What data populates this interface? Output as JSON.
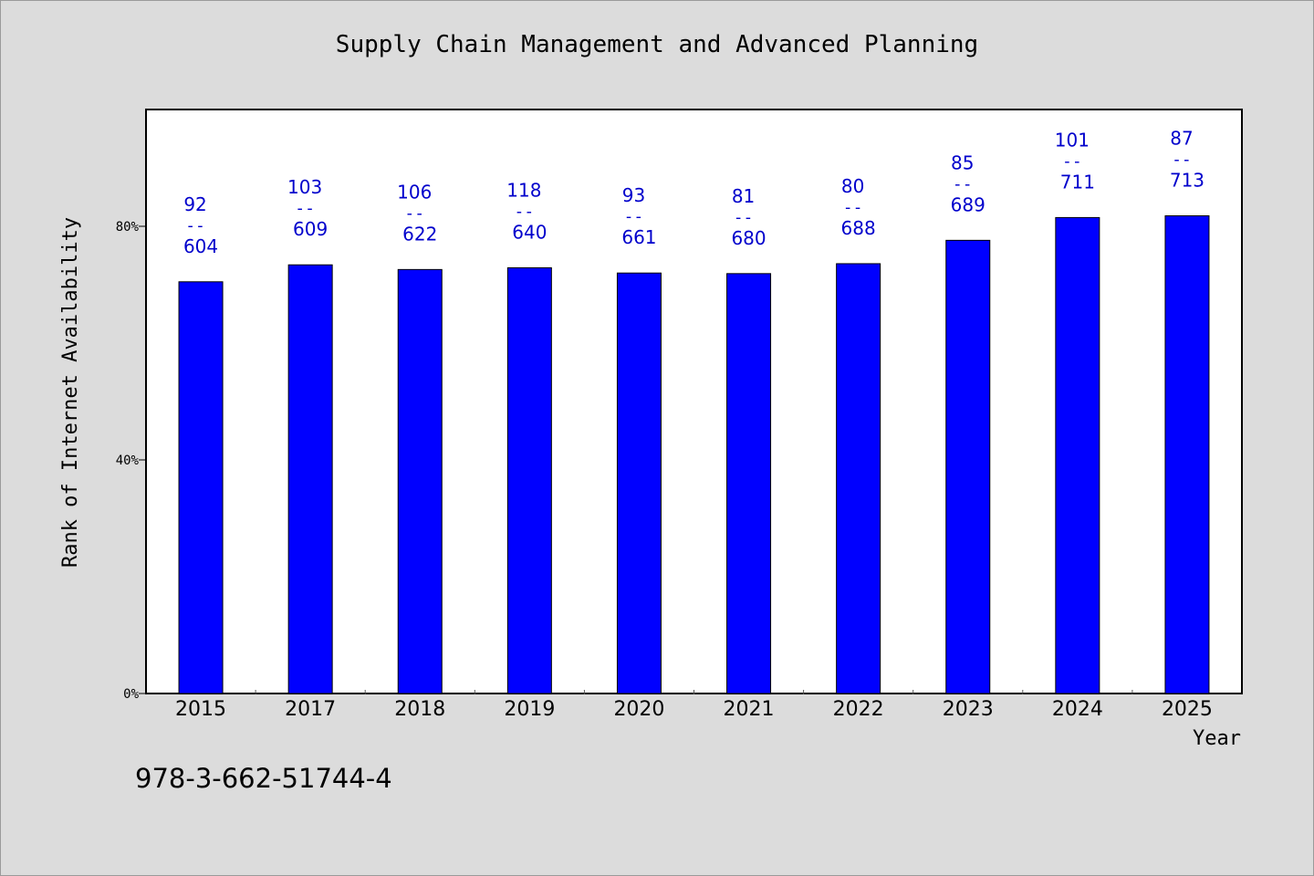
{
  "title": "Supply Chain Management and Advanced Planning",
  "isbn": "978-3-662-51744-4",
  "chart_data": {
    "type": "bar",
    "title": "Supply Chain Management and Advanced Planning",
    "xlabel": "Year",
    "ylabel": "Rank of Internet Availability",
    "ylim": [
      0,
      100
    ],
    "yticks": [
      {
        "value": 0,
        "label": "0%"
      },
      {
        "value": 40,
        "label": "40%"
      },
      {
        "value": 80,
        "label": "80%"
      }
    ],
    "categories": [
      "2015",
      "2017",
      "2018",
      "2019",
      "2020",
      "2021",
      "2022",
      "2023",
      "2024",
      "2025"
    ],
    "values": [
      70.5,
      73.4,
      72.6,
      72.9,
      72.0,
      71.9,
      73.6,
      77.6,
      81.5,
      81.8
    ],
    "labels": [
      {
        "top": "92",
        "bottom": "604"
      },
      {
        "top": "103",
        "bottom": "609"
      },
      {
        "top": "106",
        "bottom": "622"
      },
      {
        "top": "118",
        "bottom": "640"
      },
      {
        "top": "93",
        "bottom": "661"
      },
      {
        "top": "81",
        "bottom": "680"
      },
      {
        "top": "80",
        "bottom": "688"
      },
      {
        "top": "85",
        "bottom": "689"
      },
      {
        "top": "101",
        "bottom": "711"
      },
      {
        "top": "87",
        "bottom": "713"
      }
    ],
    "label_separator": "--",
    "grid": false,
    "legend": "none",
    "colors": {
      "bar": "#0000ff",
      "label": "#0000cc",
      "plot_bg": "#ffffff",
      "page_bg": "#dcdcdc"
    }
  }
}
